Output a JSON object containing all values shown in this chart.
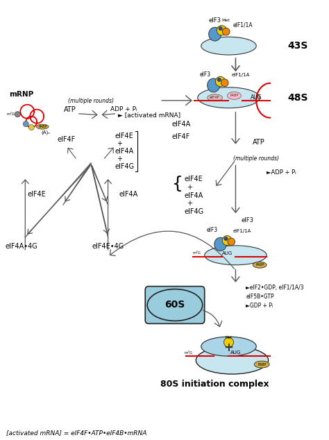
{
  "bg_color": "#ffffff",
  "footer_text": "[activated mRNA] = eIF4F•ATP•eIF4B•mRNA",
  "label_43S": "43S",
  "label_48S": "48S",
  "label_80S": "80S initiation complex",
  "ribosome_color": "#c8e6f0",
  "ribosome_edge": "#333333",
  "mrna_color": "#dd0000",
  "eif3_circle_color": "#5599cc",
  "met_circle_color": "#eecc00",
  "eif1_circle_color": "#ee8800",
  "pabp_color": "#ffbbbb",
  "eif4e_color": "#cc99cc",
  "subunit60S_color": "#99ccdd",
  "subunit60S_edge": "#333333",
  "arrow_color": "#555555",
  "text_color": "#000000",
  "font_size_main": 7,
  "font_size_label": 8,
  "font_size_footer": 6.5,
  "pabp_gold_color": "#ccaa44"
}
